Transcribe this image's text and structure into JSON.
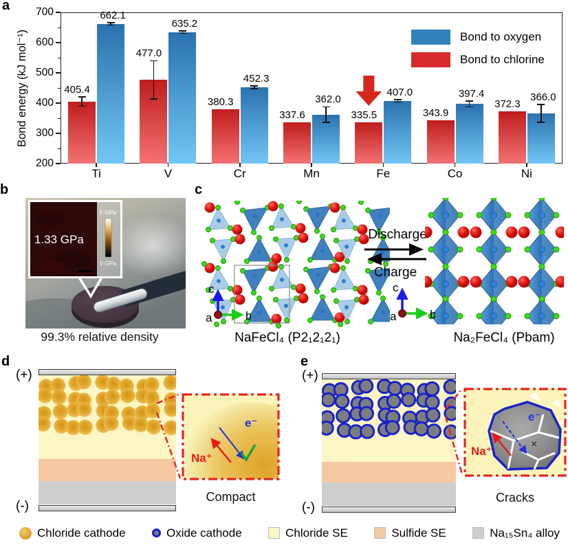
{
  "panel_a": {
    "label": "a",
    "y_axis_label": "Bond energy (kJ mol⁻¹)",
    "legend": {
      "items": [
        {
          "label": "Bond to oxygen",
          "color": "#3182bd"
        },
        {
          "label": "Bond to chlorine",
          "color": "#d62b2b"
        }
      ]
    },
    "chart_data": {
      "type": "bar",
      "categories": [
        "Ti",
        "V",
        "Cr",
        "Mn",
        "Fe",
        "Co",
        "Ni"
      ],
      "series": [
        {
          "name": "Bond to chlorine",
          "color_top": "#bf1d1d",
          "color_bottom": "#f47272",
          "values": [
            405.4,
            477.0,
            380.3,
            337.6,
            335.5,
            343.9,
            372.3
          ],
          "errors": [
            15,
            63,
            0,
            0,
            0,
            0,
            0
          ]
        },
        {
          "name": "Bond to oxygen",
          "color_top": "#2a72ae",
          "color_bottom": "#72c6f5",
          "values": [
            662.1,
            635.2,
            452.3,
            362.0,
            407.0,
            397.4,
            366.0
          ],
          "errors": [
            4,
            4,
            5,
            26,
            4,
            10,
            29
          ]
        }
      ],
      "xlabel": "",
      "ylabel": "Bond energy (kJ mol⁻¹)",
      "ylim": [
        200,
        700
      ],
      "yticks": [
        200,
        300,
        400,
        500,
        600,
        700
      ],
      "grid": false,
      "legend_position": "top-right",
      "annotation": {
        "type": "red-down-arrow",
        "target_category": "Fe",
        "target_series": "Bond to chlorine"
      }
    }
  },
  "panel_b": {
    "label": "b",
    "inset": {
      "value": "1.33 GPa",
      "colorbar_max": "5 GPa",
      "colorbar_min": "0 GPa"
    },
    "caption": "99.3% relative density"
  },
  "panel_c": {
    "label": "c",
    "reaction": {
      "forward": "Discharge",
      "backward": "Charge"
    },
    "left_structure": {
      "caption": "NaFeCl₄ (P2₁2₁2₁)",
      "axes": {
        "a": "a",
        "b": "b",
        "c": "c"
      }
    },
    "right_structure": {
      "caption": "Na₂FeCl₄ (Pbam)",
      "axes": {
        "a": "a",
        "b": "b",
        "c": "c"
      }
    }
  },
  "panel_d": {
    "label": "d",
    "positive_terminal": "(+)",
    "negative_terminal": "(-)",
    "inset": {
      "na_ion": "Na⁺",
      "electron": "e⁻"
    },
    "caption": "Compact"
  },
  "panel_e": {
    "label": "e",
    "positive_terminal": "(+)",
    "negative_terminal": "(-)",
    "inset": {
      "na_ion": "Na⁺",
      "electron": "e⁻",
      "cross": "×"
    },
    "caption": "Cracks"
  },
  "bottom_legend": {
    "items": [
      {
        "label": "Chloride cathode",
        "swatch": "gold-sphere"
      },
      {
        "label": "Oxide cathode",
        "swatch": "gray-sphere-blue-ring"
      },
      {
        "label": "Chloride SE",
        "swatch": "square",
        "color": "#fbf6c5"
      },
      {
        "label": "Sulfide SE",
        "swatch": "square",
        "color": "#f6caa4"
      },
      {
        "label": "Na₁₅Sn₄ alloy",
        "swatch": "square",
        "color": "#cdcdcd"
      }
    ]
  }
}
